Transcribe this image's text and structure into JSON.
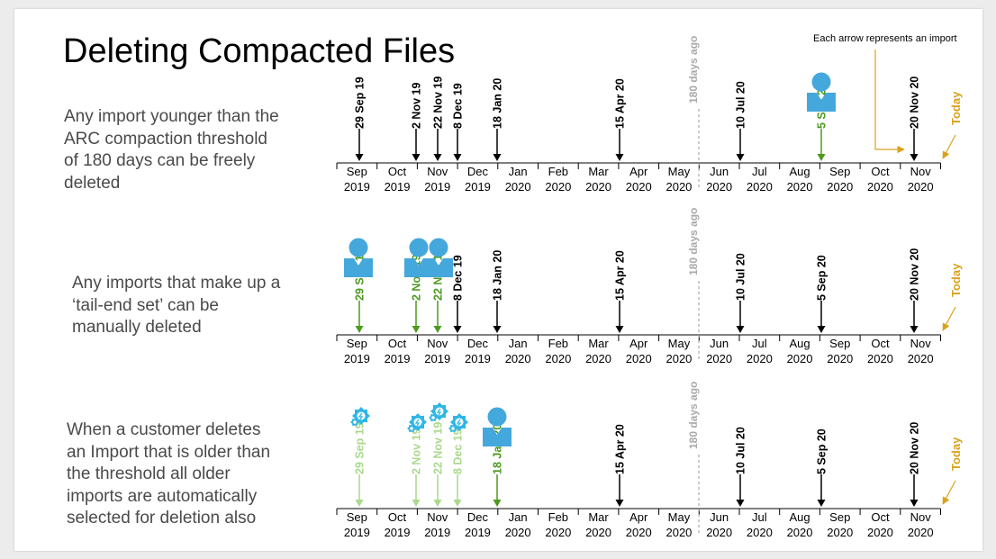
{
  "title": "Deleting Compacted Files",
  "note": "Each arrow represents an import",
  "today_label": "Today",
  "threshold_label": "180 days ago",
  "months": [
    {
      "m": "Sep",
      "y": "2019"
    },
    {
      "m": "Oct",
      "y": "2019"
    },
    {
      "m": "Nov",
      "y": "2019"
    },
    {
      "m": "Dec",
      "y": "2019"
    },
    {
      "m": "Jan",
      "y": "2020"
    },
    {
      "m": "Feb",
      "y": "2020"
    },
    {
      "m": "Mar",
      "y": "2020"
    },
    {
      "m": "Apr",
      "y": "2020"
    },
    {
      "m": "May",
      "y": "2020"
    },
    {
      "m": "Jun",
      "y": "2020"
    },
    {
      "m": "Jul",
      "y": "2020"
    },
    {
      "m": "Aug",
      "y": "2020"
    },
    {
      "m": "Sep",
      "y": "2020"
    },
    {
      "m": "Oct",
      "y": "2020"
    },
    {
      "m": "Nov",
      "y": "2020"
    }
  ],
  "imports": [
    "29 Sep 19",
    "2 Nov 19",
    "22 Nov 19",
    "8 Dec 19",
    "18 Jan 20",
    "15 Apr 20",
    "10 Jul 20",
    "5 Sep 20",
    "20 Nov 20"
  ],
  "colors": {
    "black": "#000000",
    "green": "#4c9a1e",
    "light_green": "#a9d98b",
    "gold": "#d9a21b",
    "grey": "#aaaaaa",
    "icon_blue": "#45a8dc",
    "gear_blue": "#2eb6e6"
  },
  "rows": [
    {
      "description": "Any import younger than the\nARC compaction threshold\nof 180 days can be freely\ndeleted",
      "states": [
        "black",
        "black",
        "black",
        "black",
        "black",
        "black",
        "black",
        "green",
        "black"
      ],
      "person_icons": [
        7
      ],
      "gear_icons": []
    },
    {
      "description": "Any imports that make up a\n‘tail-end set’ can be\nmanually deleted",
      "states": [
        "green",
        "green",
        "green",
        "black",
        "black",
        "black",
        "black",
        "black",
        "black"
      ],
      "person_icons": [
        0,
        1,
        2
      ],
      "gear_icons": []
    },
    {
      "description": "When a customer deletes\nan Import that is older than\nthe threshold all older\nimports are automatically\nselected for deletion also",
      "states": [
        "light_green",
        "light_green",
        "light_green",
        "light_green",
        "green",
        "black",
        "black",
        "black",
        "black"
      ],
      "person_icons": [
        4
      ],
      "gear_icons": [
        0,
        1,
        2,
        3
      ]
    }
  ]
}
